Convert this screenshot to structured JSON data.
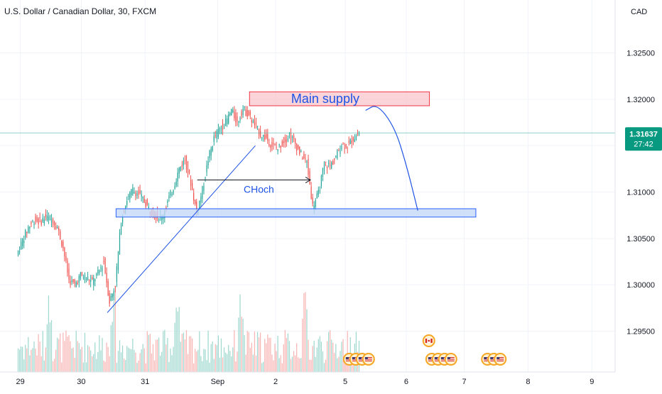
{
  "title": "U.S. Dollar / Canadian Dollar, 30, FXCM",
  "currency_label": "CAD",
  "colors": {
    "up": "#26a69a",
    "down": "#ef5350",
    "up_vol": "#9fd8cf",
    "down_vol": "#f7b5b3",
    "price_tag": "#089981",
    "annotation": "#1e53e5",
    "supply_fill": "#f8c6cc",
    "supply_stroke": "#f23645",
    "demand_fill": "#c4d8f8",
    "demand_stroke": "#2962ff"
  },
  "price_tag": {
    "price": "1.31637",
    "countdown": "27:42"
  },
  "annotations": {
    "supply_label": "Main supply",
    "choch_label": "CHoch"
  },
  "chart_data": {
    "type": "candlestick",
    "symbol": "U.S. Dollar / Canadian Dollar",
    "timeframe": "30",
    "source": "FXCM",
    "y_axis": {
      "ticks": [
        1.325,
        1.32,
        1.315,
        1.31,
        1.305,
        1.3,
        1.295
      ],
      "tick_labels": [
        "1.32500",
        "1.32000",
        "",
        "1.31000",
        "1.30500",
        "1.30000",
        "1.29500"
      ],
      "ylim": [
        1.2906,
        1.3307
      ]
    },
    "x_axis": {
      "tick_labels": [
        "29",
        "30",
        "31",
        "Sep",
        "2",
        "5",
        "6",
        "7",
        "8",
        "9"
      ],
      "tick_x": [
        0.5,
        11,
        22,
        34.5,
        44.5,
        56.5,
        67,
        77,
        88,
        99
      ],
      "xlim": [
        -3,
        103
      ]
    },
    "last_price": 1.31637,
    "supply_zone": {
      "price_low": 1.3193,
      "price_high": 1.3208,
      "x_start": 40,
      "x_end": 71
    },
    "demand_zone": {
      "price_low": 1.3073,
      "price_high": 1.3082,
      "x_start": 17,
      "x_end": 79
    },
    "trendline": {
      "from": [
        15.5,
        1.297
      ],
      "to": [
        41,
        1.315
      ]
    },
    "choch_arrow": {
      "from": [
        31,
        1.3113
      ],
      "to": [
        50.5,
        1.3113
      ]
    },
    "projection": [
      [
        60,
        1.3188
      ],
      [
        62,
        1.3195
      ],
      [
        65,
        1.317
      ],
      [
        67,
        1.313
      ],
      [
        69,
        1.308
      ]
    ],
    "close_path": [
      [
        0,
        1.3032
      ],
      [
        1,
        1.3048
      ],
      [
        2,
        1.3062
      ],
      [
        3,
        1.307
      ],
      [
        4,
        1.3068
      ],
      [
        5,
        1.3073
      ],
      [
        6,
        1.3071
      ],
      [
        7,
        1.3062
      ],
      [
        8,
        1.304
      ],
      [
        9,
        1.3005
      ],
      [
        10,
        1.3
      ],
      [
        11,
        1.301
      ],
      [
        12,
        1.3008
      ],
      [
        13,
        1.3003
      ],
      [
        14,
        1.3012
      ],
      [
        15,
        1.3025
      ],
      [
        16,
        1.2982
      ],
      [
        17,
        1.3
      ],
      [
        18,
        1.307
      ],
      [
        19,
        1.3092
      ],
      [
        20,
        1.3102
      ],
      [
        21,
        1.3098
      ],
      [
        22,
        1.309
      ],
      [
        23,
        1.308
      ],
      [
        24,
        1.3075
      ],
      [
        25,
        1.3072
      ],
      [
        26,
        1.309
      ],
      [
        27,
        1.3105
      ],
      [
        28,
        1.3125
      ],
      [
        29,
        1.3135
      ],
      [
        30,
        1.311
      ],
      [
        31,
        1.3078
      ],
      [
        32,
        1.3102
      ],
      [
        33,
        1.3135
      ],
      [
        34,
        1.3158
      ],
      [
        35,
        1.3168
      ],
      [
        36,
        1.3175
      ],
      [
        37,
        1.3188
      ],
      [
        38,
        1.3175
      ],
      [
        39,
        1.319
      ],
      [
        40,
        1.3183
      ],
      [
        41,
        1.3172
      ],
      [
        42,
        1.3162
      ],
      [
        43,
        1.3158
      ],
      [
        44,
        1.315
      ],
      [
        45,
        1.3147
      ],
      [
        46,
        1.3155
      ],
      [
        47,
        1.3162
      ],
      [
        48,
        1.3152
      ],
      [
        49,
        1.314
      ],
      [
        50,
        1.3132
      ],
      [
        51,
        1.3085
      ],
      [
        52,
        1.3098
      ],
      [
        53,
        1.313
      ],
      [
        54,
        1.3128
      ],
      [
        55,
        1.3138
      ],
      [
        56,
        1.3152
      ],
      [
        57,
        1.315
      ],
      [
        58,
        1.3158
      ],
      [
        59,
        1.3164
      ]
    ],
    "event_icons": [
      {
        "x": 57.2,
        "y_offset": 0,
        "count": 4,
        "flag": "us"
      },
      {
        "x": 71.4,
        "y_offset": 0,
        "count": 4,
        "flag": "us"
      },
      {
        "x": 70.9,
        "y_offset": -26,
        "count": 1,
        "flag": "ca"
      },
      {
        "x": 81.0,
        "y_offset": 0,
        "count": 3,
        "flag": "us"
      }
    ]
  }
}
